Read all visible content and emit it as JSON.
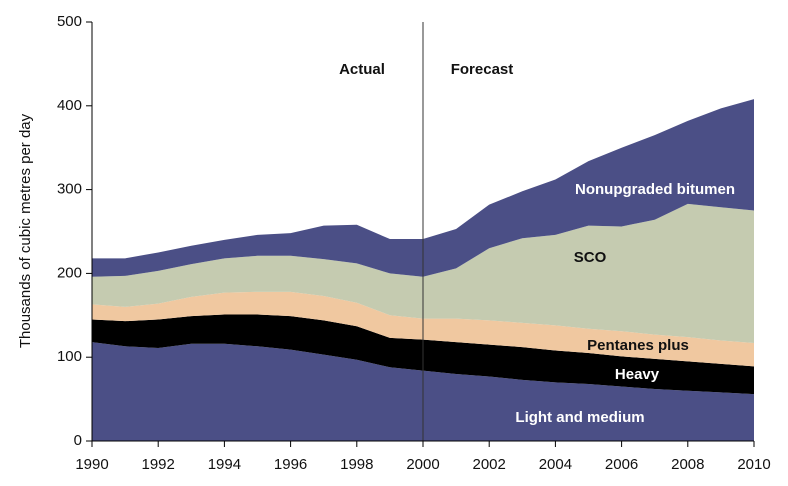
{
  "chart_data": {
    "type": "stacked_area",
    "y_label": "Thousands of cubic metres per day",
    "annotations": [
      "Actual",
      "Forecast"
    ],
    "divider": 2000,
    "x": [
      1990,
      1991,
      1992,
      1993,
      1994,
      1995,
      1996,
      1997,
      1998,
      1999,
      2000,
      2001,
      2002,
      2003,
      2004,
      2005,
      2006,
      2007,
      2008,
      2009,
      2010
    ],
    "series": [
      {
        "name": "Light and medium",
        "color": "#4b4f86",
        "values": [
          118,
          113,
          111,
          116,
          116,
          113,
          109,
          103,
          97,
          88,
          84,
          80,
          77,
          73,
          70,
          68,
          65,
          62,
          60,
          58,
          56
        ]
      },
      {
        "name": "Heavy",
        "color": "#000000",
        "values": [
          27,
          30,
          34,
          33,
          35,
          38,
          40,
          41,
          40,
          35,
          37,
          38,
          38,
          39,
          38,
          37,
          36,
          36,
          35,
          34,
          33
        ]
      },
      {
        "name": "Pentanes plus",
        "color": "#f0c8a0",
        "values": [
          18,
          17,
          19,
          23,
          26,
          27,
          29,
          29,
          28,
          27,
          25,
          28,
          29,
          29,
          30,
          29,
          30,
          29,
          29,
          28,
          28
        ]
      },
      {
        "name": "SCO",
        "color": "#c5cbb0",
        "values": [
          33,
          37,
          39,
          39,
          41,
          43,
          43,
          44,
          47,
          50,
          50,
          60,
          86,
          101,
          108,
          123,
          125,
          137,
          159,
          159,
          158
        ]
      },
      {
        "name": "Nonupgraded bitumen",
        "color": "#4b4f86",
        "values": [
          22,
          21,
          22,
          22,
          22,
          25,
          27,
          40,
          46,
          41,
          45,
          47,
          52,
          56,
          66,
          77,
          94,
          101,
          99,
          118,
          133
        ]
      }
    ],
    "xlim": [
      1990,
      2010
    ],
    "xticks": [
      1990,
      1992,
      1994,
      1996,
      1998,
      2000,
      2002,
      2004,
      2006,
      2008,
      2010
    ],
    "ylim": [
      0,
      500
    ],
    "yticks": [
      0,
      100,
      200,
      300,
      400,
      500
    ]
  }
}
